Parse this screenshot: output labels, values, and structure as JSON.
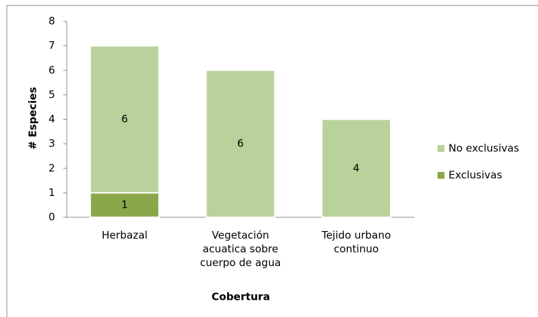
{
  "chart_data": {
    "type": "stacked_bar",
    "categories": [
      "Herbazal",
      "Vegetación acuatica sobre cuerpo de agua",
      "Tejido urbano continuo"
    ],
    "series": [
      {
        "name": "Exclusivas",
        "color": "#8aa84a",
        "values": [
          1,
          0,
          0
        ]
      },
      {
        "name": "No exclusivas",
        "color": "#b9d19a",
        "values": [
          6,
          6,
          4
        ]
      }
    ],
    "ylim": [
      0,
      8
    ],
    "yticks": [
      0,
      1,
      2,
      3,
      4,
      5,
      6,
      7,
      8
    ],
    "ylabel": "# Especies",
    "xlabel": "Cobertura",
    "legend": "right"
  }
}
